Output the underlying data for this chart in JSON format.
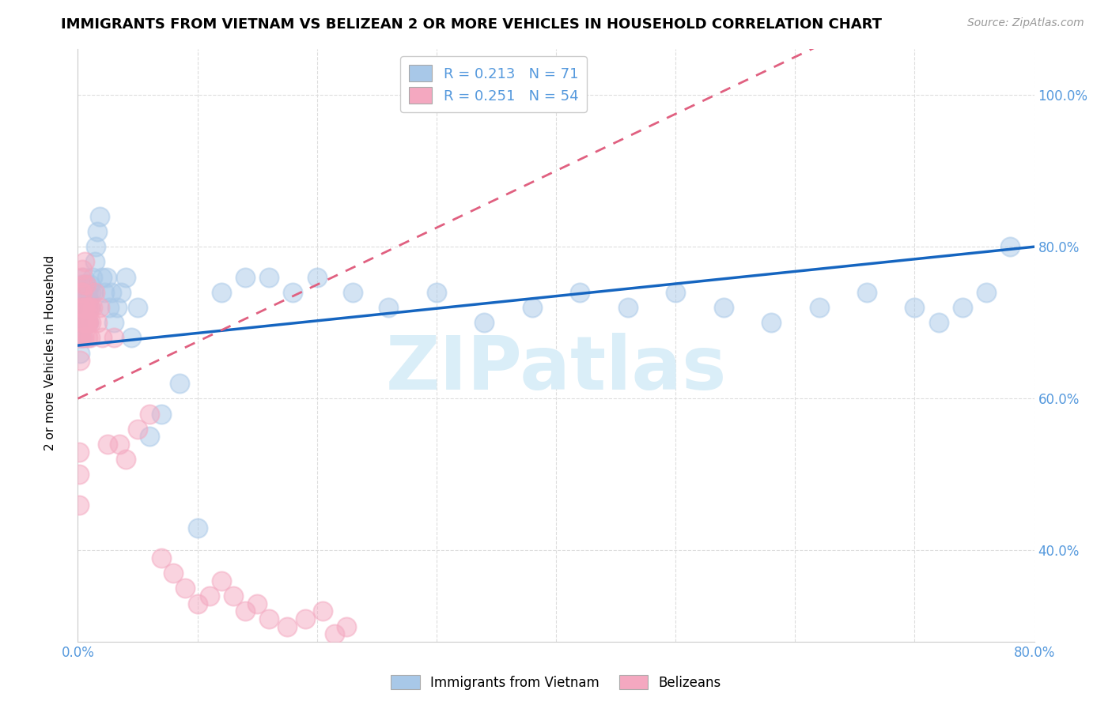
{
  "title": "IMMIGRANTS FROM VIETNAM VS BELIZEAN 2 OR MORE VEHICLES IN HOUSEHOLD CORRELATION CHART",
  "source": "Source: ZipAtlas.com",
  "ylabel": "2 or more Vehicles in Household",
  "xlim": [
    0.0,
    0.8
  ],
  "ylim": [
    0.28,
    1.06
  ],
  "ytick_positions": [
    0.4,
    0.6,
    0.8,
    1.0
  ],
  "ytick_labels": [
    "40.0%",
    "60.0%",
    "80.0%",
    "100.0%"
  ],
  "xtick_positions": [
    0.0,
    0.1,
    0.2,
    0.3,
    0.4,
    0.5,
    0.6,
    0.7,
    0.8
  ],
  "xtick_labels": [
    "0.0%",
    "",
    "",
    "",
    "",
    "",
    "",
    "",
    "80.0%"
  ],
  "legend_r1": "0.213",
  "legend_n1": "71",
  "legend_r2": "0.251",
  "legend_n2": "54",
  "blue_color": "#A8C8E8",
  "pink_color": "#F4A8C0",
  "trend_blue": "#1565C0",
  "trend_pink": "#E06080",
  "watermark": "ZIPatlas",
  "watermark_color": "#DAEEF8",
  "title_fontsize": 13,
  "source_fontsize": 10,
  "tick_fontsize": 12,
  "tick_color": "#5599DD",
  "grid_color": "#DDDDDD",
  "vietnam_x": [
    0.001,
    0.001,
    0.002,
    0.002,
    0.002,
    0.003,
    0.003,
    0.003,
    0.004,
    0.004,
    0.004,
    0.005,
    0.005,
    0.005,
    0.005,
    0.006,
    0.006,
    0.006,
    0.007,
    0.007,
    0.007,
    0.008,
    0.008,
    0.009,
    0.009,
    0.01,
    0.01,
    0.011,
    0.012,
    0.013,
    0.014,
    0.015,
    0.016,
    0.018,
    0.02,
    0.022,
    0.024,
    0.026,
    0.028,
    0.03,
    0.033,
    0.036,
    0.04,
    0.045,
    0.05,
    0.06,
    0.07,
    0.085,
    0.1,
    0.12,
    0.14,
    0.16,
    0.18,
    0.2,
    0.23,
    0.26,
    0.3,
    0.34,
    0.38,
    0.42,
    0.46,
    0.5,
    0.54,
    0.58,
    0.62,
    0.66,
    0.7,
    0.72,
    0.74,
    0.76,
    0.78
  ],
  "vietnam_y": [
    0.68,
    0.7,
    0.66,
    0.72,
    0.74,
    0.7,
    0.72,
    0.75,
    0.68,
    0.71,
    0.73,
    0.7,
    0.72,
    0.74,
    0.76,
    0.7,
    0.72,
    0.74,
    0.71,
    0.73,
    0.75,
    0.72,
    0.74,
    0.7,
    0.73,
    0.72,
    0.75,
    0.74,
    0.76,
    0.74,
    0.78,
    0.8,
    0.82,
    0.84,
    0.76,
    0.74,
    0.76,
    0.72,
    0.74,
    0.7,
    0.72,
    0.74,
    0.76,
    0.68,
    0.72,
    0.55,
    0.58,
    0.62,
    0.43,
    0.74,
    0.76,
    0.76,
    0.74,
    0.76,
    0.74,
    0.72,
    0.74,
    0.7,
    0.72,
    0.74,
    0.72,
    0.74,
    0.72,
    0.7,
    0.72,
    0.74,
    0.72,
    0.7,
    0.72,
    0.74,
    0.8
  ],
  "belize_x": [
    0.001,
    0.001,
    0.001,
    0.002,
    0.002,
    0.002,
    0.003,
    0.003,
    0.003,
    0.004,
    0.004,
    0.004,
    0.005,
    0.005,
    0.005,
    0.006,
    0.006,
    0.006,
    0.007,
    0.007,
    0.007,
    0.008,
    0.008,
    0.009,
    0.009,
    0.01,
    0.01,
    0.011,
    0.012,
    0.014,
    0.016,
    0.018,
    0.02,
    0.025,
    0.03,
    0.035,
    0.04,
    0.05,
    0.06,
    0.07,
    0.08,
    0.09,
    0.1,
    0.11,
    0.12,
    0.13,
    0.14,
    0.15,
    0.16,
    0.175,
    0.19,
    0.205,
    0.215,
    0.225
  ],
  "belize_y": [
    0.46,
    0.5,
    0.53,
    0.65,
    0.68,
    0.72,
    0.74,
    0.76,
    0.68,
    0.7,
    0.74,
    0.77,
    0.68,
    0.72,
    0.75,
    0.78,
    0.7,
    0.72,
    0.7,
    0.72,
    0.75,
    0.68,
    0.7,
    0.72,
    0.7,
    0.68,
    0.72,
    0.7,
    0.72,
    0.74,
    0.7,
    0.72,
    0.68,
    0.54,
    0.68,
    0.54,
    0.52,
    0.56,
    0.58,
    0.39,
    0.37,
    0.35,
    0.33,
    0.34,
    0.36,
    0.34,
    0.32,
    0.33,
    0.31,
    0.3,
    0.31,
    0.32,
    0.29,
    0.3
  ]
}
